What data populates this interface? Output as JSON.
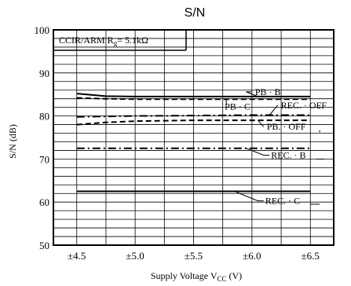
{
  "chart_data": {
    "type": "line",
    "title": "S/N",
    "xlabel": "Supply Voltage V",
    "xlabel_sub": "CC",
    "xlabel_unit": " (V)",
    "ylabel": "S/N (dB)",
    "xlim": [
      4.3,
      6.7
    ],
    "ylim": [
      50,
      100
    ],
    "x_ticks": [
      4.5,
      5.0,
      5.5,
      6.0,
      6.5
    ],
    "x_tick_labels": [
      "±4.5",
      "±5.0",
      "±5.5",
      "±6.0",
      "±6.5"
    ],
    "y_ticks": [
      50,
      60,
      70,
      80,
      90,
      100
    ],
    "y_tick_labels": [
      "50",
      "60",
      "70",
      "80",
      "90",
      "100"
    ],
    "grid": true,
    "annotation": {
      "prefix": "CCIR/ARM R",
      "sub": "g",
      "suffix": "= 5.1kΩ"
    },
    "series": [
      {
        "name": "PB · B",
        "style": "solid",
        "x": [
          4.5,
          4.75,
          5.0,
          5.5,
          6.0,
          6.5
        ],
        "values": [
          85.2,
          84.6,
          84.5,
          84.5,
          84.5,
          84.5
        ]
      },
      {
        "name": "PB · C",
        "style": "dash",
        "x": [
          4.5,
          4.75,
          5.0,
          5.5,
          6.0,
          6.5
        ],
        "values": [
          84.2,
          84.0,
          83.9,
          83.9,
          83.9,
          83.9
        ]
      },
      {
        "name": "REC. · OFF",
        "style": "dashdot",
        "x": [
          4.5,
          5.0,
          5.5,
          6.0,
          6.5
        ],
        "values": [
          79.8,
          80.0,
          80.1,
          80.2,
          80.2
        ]
      },
      {
        "name": "PB. · OFF",
        "style": "dash",
        "x": [
          4.5,
          4.75,
          5.0,
          5.5,
          6.0,
          6.5
        ],
        "values": [
          78.0,
          78.5,
          78.8,
          79.0,
          79.0,
          79.0
        ]
      },
      {
        "name": "REC. · B",
        "style": "dashdot",
        "x": [
          4.5,
          5.0,
          5.5,
          6.0,
          6.5
        ],
        "values": [
          72.5,
          72.5,
          72.5,
          72.5,
          72.5
        ]
      },
      {
        "name": "REC. · C",
        "style": "solid",
        "x": [
          4.5,
          5.0,
          5.5,
          6.0,
          6.5
        ],
        "values": [
          62.5,
          62.5,
          62.5,
          62.5,
          62.5
        ]
      }
    ]
  }
}
